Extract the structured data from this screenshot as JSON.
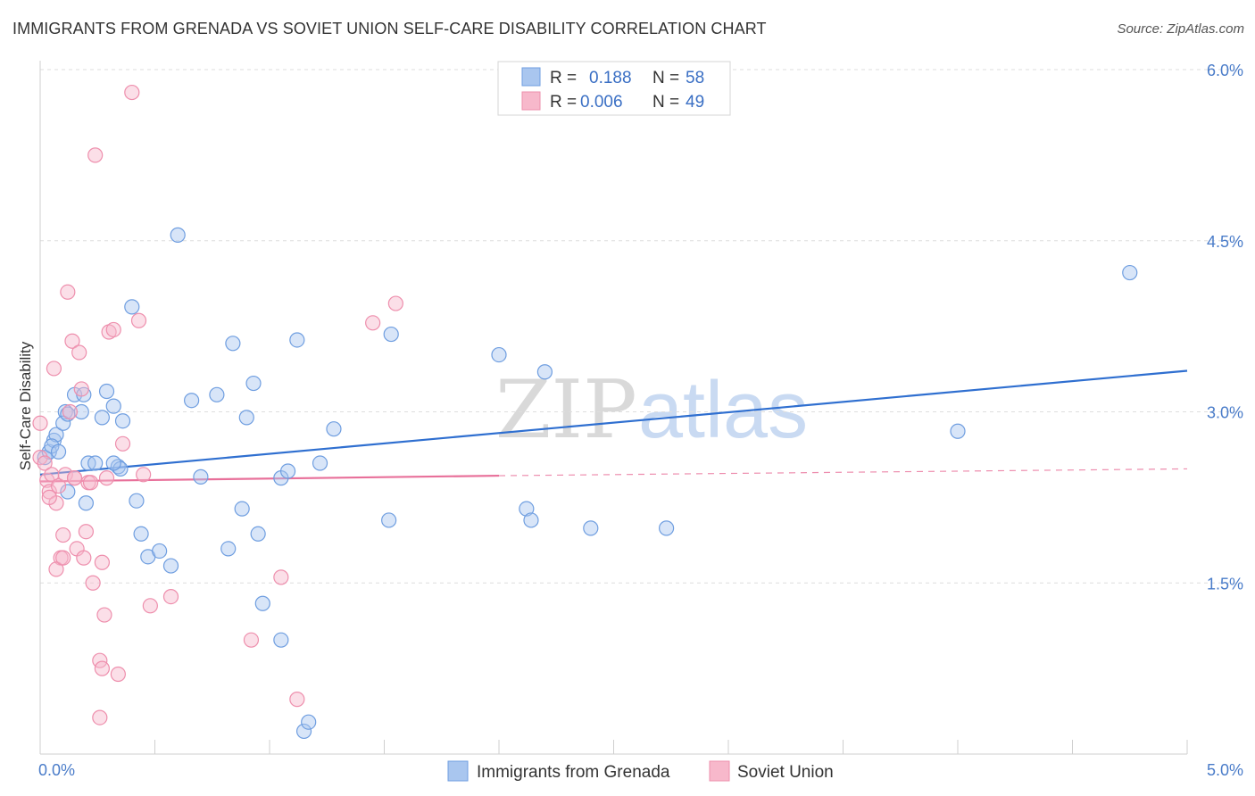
{
  "header": {
    "title": "IMMIGRANTS FROM GRENADA VS SOVIET UNION SELF-CARE DISABILITY CORRELATION CHART",
    "source": "Source: ZipAtlas.com"
  },
  "watermark": {
    "zip": "ZIP",
    "atlas": "atlas"
  },
  "legend_box": {
    "rows": [
      {
        "r_label": "R =",
        "r_value": "0.188",
        "n_label": "N =",
        "n_value": "58"
      },
      {
        "r_label": "R =",
        "r_value": "0.006",
        "n_label": "N =",
        "n_value": "49"
      }
    ]
  },
  "chart_data": {
    "type": "scatter",
    "title": "IMMIGRANTS FROM GRENADA VS SOVIET UNION SELF-CARE DISABILITY CORRELATION CHART",
    "xlabel": "",
    "ylabel": "Self-Care Disability",
    "xlim": [
      0,
      5.0
    ],
    "ylim": [
      0,
      6.0
    ],
    "x_tick_labels": [
      "0.0%",
      "5.0%"
    ],
    "y_ticks": [
      1.5,
      3.0,
      4.5,
      6.0
    ],
    "y_tick_labels": [
      "1.5%",
      "3.0%",
      "4.5%",
      "6.0%"
    ],
    "grid": true,
    "legend_position": "bottom",
    "series": [
      {
        "name": "Immigrants from Grenada",
        "color": "#a9c6ef",
        "stroke": "#6f9ee0",
        "line_color": "#2f6fd0",
        "trend": {
          "x": [
            0.0,
            5.0
          ],
          "y": [
            2.45,
            3.36
          ]
        },
        "points": [
          [
            0.02,
            2.6
          ],
          [
            0.04,
            2.65
          ],
          [
            0.06,
            2.75
          ],
          [
            0.07,
            2.8
          ],
          [
            0.05,
            2.7
          ],
          [
            0.11,
            3.0
          ],
          [
            0.15,
            3.15
          ],
          [
            0.1,
            2.9
          ],
          [
            0.12,
            2.98
          ],
          [
            0.18,
            3.0
          ],
          [
            0.19,
            3.15
          ],
          [
            0.21,
            2.55
          ],
          [
            0.24,
            2.55
          ],
          [
            0.27,
            2.95
          ],
          [
            0.29,
            3.18
          ],
          [
            0.32,
            3.05
          ],
          [
            0.34,
            2.52
          ],
          [
            0.35,
            2.5
          ],
          [
            0.32,
            2.55
          ],
          [
            0.4,
            3.92
          ],
          [
            0.42,
            2.22
          ],
          [
            0.44,
            1.93
          ],
          [
            0.47,
            1.73
          ],
          [
            0.6,
            4.55
          ],
          [
            0.52,
            1.78
          ],
          [
            0.57,
            1.65
          ],
          [
            0.66,
            3.1
          ],
          [
            0.7,
            2.43
          ],
          [
            0.77,
            3.15
          ],
          [
            0.82,
            1.8
          ],
          [
            0.84,
            3.6
          ],
          [
            0.88,
            2.15
          ],
          [
            0.9,
            2.95
          ],
          [
            0.93,
            3.25
          ],
          [
            0.95,
            1.93
          ],
          [
            0.97,
            1.32
          ],
          [
            1.05,
            2.42
          ],
          [
            1.08,
            2.48
          ],
          [
            1.12,
            3.63
          ],
          [
            1.05,
            1.0
          ],
          [
            1.15,
            0.2
          ],
          [
            1.17,
            0.28
          ],
          [
            1.22,
            2.55
          ],
          [
            1.28,
            2.85
          ],
          [
            1.52,
            2.05
          ],
          [
            1.53,
            3.68
          ],
          [
            2.0,
            3.5
          ],
          [
            2.12,
            2.15
          ],
          [
            2.14,
            2.05
          ],
          [
            2.2,
            3.35
          ],
          [
            2.4,
            1.98
          ],
          [
            2.73,
            1.98
          ],
          [
            4.0,
            2.83
          ],
          [
            4.75,
            4.22
          ],
          [
            0.08,
            2.65
          ],
          [
            0.2,
            2.2
          ],
          [
            0.36,
            2.92
          ],
          [
            0.12,
            2.3
          ]
        ]
      },
      {
        "name": "Soviet Union",
        "color": "#f7b8cb",
        "stroke": "#ee8fad",
        "line_color": "#e8709a",
        "trend": {
          "x": [
            0.0,
            2.0
          ],
          "y": [
            2.39,
            2.44
          ]
        },
        "trend_extension": {
          "x": [
            2.0,
            5.0
          ],
          "y": [
            2.44,
            2.5
          ]
        },
        "points": [
          [
            0.0,
            2.6
          ],
          [
            0.02,
            2.55
          ],
          [
            0.03,
            2.4
          ],
          [
            0.04,
            2.3
          ],
          [
            0.05,
            2.45
          ],
          [
            0.06,
            3.38
          ],
          [
            0.07,
            2.2
          ],
          [
            0.08,
            2.35
          ],
          [
            0.09,
            1.72
          ],
          [
            0.1,
            1.92
          ],
          [
            0.11,
            2.45
          ],
          [
            0.12,
            4.05
          ],
          [
            0.13,
            3.0
          ],
          [
            0.14,
            3.62
          ],
          [
            0.15,
            2.42
          ],
          [
            0.16,
            1.8
          ],
          [
            0.17,
            3.52
          ],
          [
            0.18,
            3.2
          ],
          [
            0.19,
            1.72
          ],
          [
            0.2,
            1.95
          ],
          [
            0.21,
            2.38
          ],
          [
            0.23,
            1.5
          ],
          [
            0.24,
            5.25
          ],
          [
            0.26,
            0.82
          ],
          [
            0.27,
            1.68
          ],
          [
            0.27,
            0.75
          ],
          [
            0.28,
            1.22
          ],
          [
            0.29,
            2.42
          ],
          [
            0.3,
            3.7
          ],
          [
            0.32,
            3.72
          ],
          [
            0.34,
            0.7
          ],
          [
            0.36,
            2.72
          ],
          [
            0.4,
            5.8
          ],
          [
            0.43,
            3.8
          ],
          [
            0.45,
            2.45
          ],
          [
            0.48,
            1.3
          ],
          [
            0.57,
            1.38
          ],
          [
            0.92,
            1.0
          ],
          [
            1.05,
            1.55
          ],
          [
            1.12,
            0.48
          ],
          [
            1.45,
            3.78
          ],
          [
            1.55,
            3.95
          ],
          [
            0.26,
            0.32
          ],
          [
            0.0,
            2.9
          ],
          [
            0.04,
            2.25
          ],
          [
            0.07,
            1.62
          ],
          [
            0.1,
            1.72
          ],
          [
            0.15,
            2.42
          ],
          [
            0.22,
            2.38
          ]
        ]
      }
    ]
  }
}
